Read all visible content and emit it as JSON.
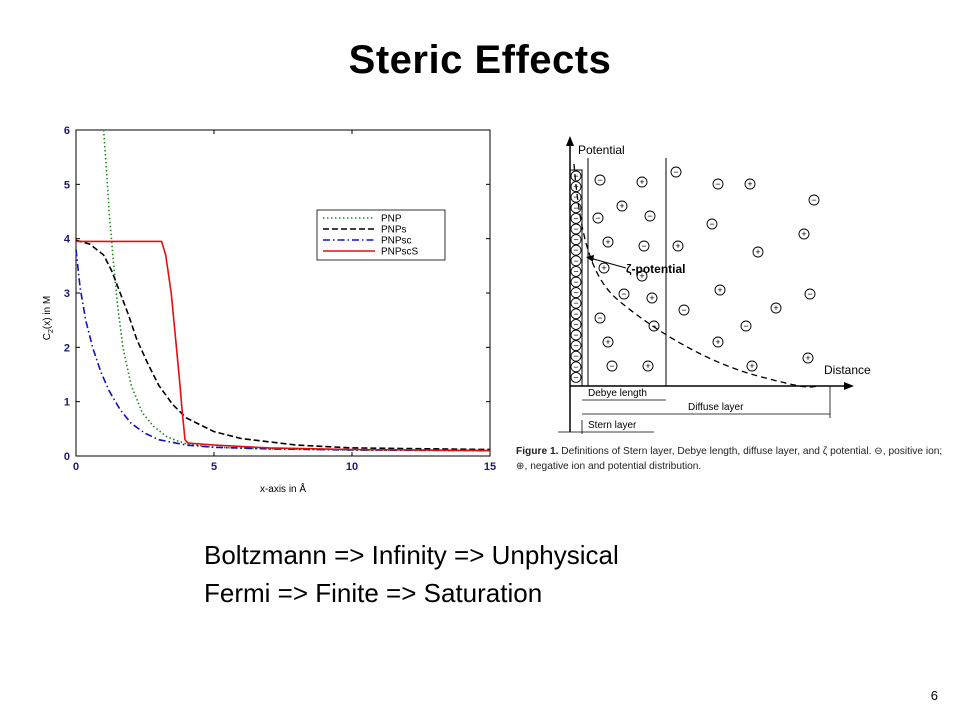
{
  "title": "Steric Effects",
  "slide_number": "6",
  "chart_data": {
    "type": "line",
    "xlabel": "x-axis in Å",
    "ylabel_base": "C",
    "ylabel_sub": "2",
    "ylabel_tail": "(x) in M",
    "xlim": [
      0,
      15
    ],
    "ylim": [
      0,
      6
    ],
    "xticks": [
      0,
      5,
      10,
      15
    ],
    "yticks": [
      0,
      1,
      2,
      3,
      4,
      5,
      6
    ],
    "grid": false,
    "legend_position": "upper-right",
    "series": [
      {
        "name": "PNP",
        "color": "#1a8a1a",
        "dash": "1.5 2.5",
        "points": [
          [
            1.0,
            6.0
          ],
          [
            1.1,
            5.3
          ],
          [
            1.2,
            4.5
          ],
          [
            1.35,
            3.6
          ],
          [
            1.5,
            2.8
          ],
          [
            1.7,
            2.0
          ],
          [
            2.0,
            1.3
          ],
          [
            2.4,
            0.8
          ],
          [
            2.8,
            0.55
          ],
          [
            3.3,
            0.35
          ],
          [
            4.0,
            0.22
          ],
          [
            5,
            0.16
          ],
          [
            7,
            0.13
          ],
          [
            10,
            0.11
          ],
          [
            15,
            0.1
          ]
        ]
      },
      {
        "name": "PNPs",
        "color": "#000000",
        "dash": "6 3",
        "points": [
          [
            0,
            3.97
          ],
          [
            0.5,
            3.9
          ],
          [
            1.0,
            3.7
          ],
          [
            1.3,
            3.4
          ],
          [
            1.6,
            3.0
          ],
          [
            1.9,
            2.6
          ],
          [
            2.2,
            2.15
          ],
          [
            2.6,
            1.7
          ],
          [
            3.0,
            1.3
          ],
          [
            3.5,
            0.95
          ],
          [
            4.0,
            0.7
          ],
          [
            5,
            0.45
          ],
          [
            6,
            0.32
          ],
          [
            8,
            0.2
          ],
          [
            10,
            0.15
          ],
          [
            15,
            0.12
          ]
        ]
      },
      {
        "name": "PNPsc",
        "color": "#1010c8",
        "dash": "7 3 1.5 3",
        "points": [
          [
            0,
            3.8
          ],
          [
            0.15,
            3.1
          ],
          [
            0.35,
            2.5
          ],
          [
            0.6,
            2.0
          ],
          [
            0.9,
            1.55
          ],
          [
            1.2,
            1.2
          ],
          [
            1.6,
            0.85
          ],
          [
            2.0,
            0.6
          ],
          [
            2.5,
            0.42
          ],
          [
            3.0,
            0.3
          ],
          [
            4,
            0.2
          ],
          [
            5,
            0.16
          ],
          [
            7,
            0.13
          ],
          [
            10,
            0.11
          ],
          [
            15,
            0.1
          ]
        ]
      },
      {
        "name": "PNPscS",
        "color": "#e01010",
        "dash": "",
        "points": [
          [
            0,
            3.95
          ],
          [
            3.1,
            3.95
          ],
          [
            3.25,
            3.7
          ],
          [
            3.45,
            3.0
          ],
          [
            3.6,
            2.2
          ],
          [
            3.75,
            1.4
          ],
          [
            3.85,
            0.8
          ],
          [
            3.95,
            0.3
          ],
          [
            4.05,
            0.24
          ],
          [
            5,
            0.2
          ],
          [
            7,
            0.15
          ],
          [
            10,
            0.12
          ],
          [
            15,
            0.1
          ]
        ]
      }
    ]
  },
  "figure": {
    "potential_label": "Potential",
    "distance_label": "Distance",
    "zeta_label": "ζ-potential",
    "debye_label": "Debye length",
    "diffuse_label": "Diffuse layer",
    "stern_label": "Stern layer",
    "caption_bold": "Figure 1.",
    "caption_text": " Definitions of Stern layer, Debye length, diffuse layer, and ζ potential. ⊖, positive ion; ⊕, negative ion and potential distribution.",
    "minus_symbol": "−",
    "plus_symbol": "+"
  },
  "bullets": [
    "Boltzmann  =>  Infinity  =>  Unphysical",
    "Fermi  =>  Finite  =>  Saturation"
  ]
}
